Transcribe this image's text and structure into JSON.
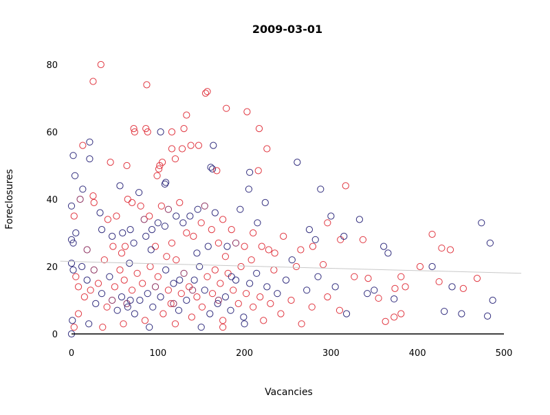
{
  "chart_data": {
    "type": "scatter",
    "title": "2009-03-01",
    "xlabel": "Vacancies",
    "ylabel": "Foreclosures",
    "xlim": [
      -13,
      520
    ],
    "ylim": [
      0,
      82
    ],
    "xticks": [
      "0",
      "100",
      "200",
      "300",
      "400",
      "500"
    ],
    "yticks": [
      "0",
      "20",
      "40",
      "60",
      "80"
    ],
    "grid": false,
    "colors": {
      "r": "#e0343e",
      "b": "#2e2a7c",
      "p": "#8a2c5c",
      "trend": "#c8c8c8",
      "axis": "#000000"
    },
    "trend": {
      "x": [
        -13,
        520
      ],
      "y": [
        21.6,
        18.0
      ]
    },
    "points": [
      [
        34,
        80,
        "r"
      ],
      [
        25,
        75,
        "r"
      ],
      [
        87,
        74,
        "r"
      ],
      [
        157,
        72,
        "r"
      ],
      [
        155,
        71.5,
        "r"
      ],
      [
        133,
        65,
        "r"
      ],
      [
        179,
        67,
        "r"
      ],
      [
        203,
        66,
        "r"
      ],
      [
        72,
        61,
        "r"
      ],
      [
        73,
        60,
        "r"
      ],
      [
        86,
        61,
        "r"
      ],
      [
        88,
        60,
        "r"
      ],
      [
        130,
        61,
        "r"
      ],
      [
        103,
        60,
        "b"
      ],
      [
        116,
        60,
        "r"
      ],
      [
        116,
        55,
        "r"
      ],
      [
        13,
        56,
        "r"
      ],
      [
        21,
        57,
        "b"
      ],
      [
        21,
        52,
        "b"
      ],
      [
        164,
        56,
        "b"
      ],
      [
        147,
        56,
        "r"
      ],
      [
        217,
        61,
        "r"
      ],
      [
        226,
        55,
        "r"
      ],
      [
        261,
        51,
        "b"
      ],
      [
        161,
        49.5,
        "b"
      ],
      [
        163,
        49,
        "b"
      ],
      [
        168,
        48.5,
        "r"
      ],
      [
        2,
        53,
        "b"
      ],
      [
        4,
        47,
        "b"
      ],
      [
        45,
        51,
        "r"
      ],
      [
        64,
        50,
        "r"
      ],
      [
        102,
        50,
        "r"
      ],
      [
        101,
        49,
        "r"
      ],
      [
        109,
        45,
        "b"
      ],
      [
        108,
        44.5,
        "b"
      ],
      [
        206,
        48,
        "b"
      ],
      [
        216,
        48.5,
        "r"
      ],
      [
        317,
        44,
        "r"
      ],
      [
        288,
        43,
        "b"
      ],
      [
        56,
        44,
        "b"
      ],
      [
        13,
        43,
        "b"
      ],
      [
        99,
        47,
        "r"
      ],
      [
        120,
        52,
        "r"
      ],
      [
        105,
        51,
        "r"
      ],
      [
        128,
        55,
        "r"
      ],
      [
        138,
        56,
        "r"
      ],
      [
        0,
        38,
        "b"
      ],
      [
        3,
        35,
        "r"
      ],
      [
        5,
        30,
        "b"
      ],
      [
        0,
        28,
        "b"
      ],
      [
        2,
        27,
        "b"
      ],
      [
        10,
        40,
        "p"
      ],
      [
        18,
        25,
        "p"
      ],
      [
        25,
        41,
        "r"
      ],
      [
        26,
        39,
        "r"
      ],
      [
        33,
        36,
        "b"
      ],
      [
        35,
        31,
        "b"
      ],
      [
        42,
        34,
        "r"
      ],
      [
        47,
        29,
        "b"
      ],
      [
        52,
        35,
        "r"
      ],
      [
        59,
        30,
        "b"
      ],
      [
        62,
        26,
        "r"
      ],
      [
        65,
        40,
        "r"
      ],
      [
        68,
        31,
        "b"
      ],
      [
        70,
        39,
        "r"
      ],
      [
        72,
        27,
        "b"
      ],
      [
        78,
        42,
        "b"
      ],
      [
        80,
        38,
        "r"
      ],
      [
        84,
        34,
        "p"
      ],
      [
        86,
        29,
        "b"
      ],
      [
        90,
        35,
        "r"
      ],
      [
        93,
        31,
        "b"
      ],
      [
        97,
        26,
        "r"
      ],
      [
        100,
        33,
        "b"
      ],
      [
        104,
        38,
        "r"
      ],
      [
        108,
        32,
        "b"
      ],
      [
        112,
        37,
        "p"
      ],
      [
        116,
        27,
        "r"
      ],
      [
        121,
        35,
        "b"
      ],
      [
        125,
        39,
        "r"
      ],
      [
        129,
        33,
        "b"
      ],
      [
        133,
        30,
        "r"
      ],
      [
        137,
        35,
        "b"
      ],
      [
        141,
        29,
        "r"
      ],
      [
        146,
        37,
        "b"
      ],
      [
        150,
        33,
        "r"
      ],
      [
        154,
        38,
        "p"
      ],
      [
        158,
        26,
        "b"
      ],
      [
        162,
        31,
        "r"
      ],
      [
        166,
        36,
        "b"
      ],
      [
        170,
        27,
        "r"
      ],
      [
        175,
        34,
        "r"
      ],
      [
        180,
        26,
        "b"
      ],
      [
        185,
        31,
        "r"
      ],
      [
        190,
        27,
        "p"
      ],
      [
        195,
        37,
        "b"
      ],
      [
        200,
        26,
        "r"
      ],
      [
        205,
        43,
        "b"
      ],
      [
        210,
        30,
        "r"
      ],
      [
        215,
        33,
        "b"
      ],
      [
        220,
        26,
        "r"
      ],
      [
        224,
        39,
        "b"
      ],
      [
        228,
        25,
        "r"
      ],
      [
        235,
        24,
        "r"
      ],
      [
        245,
        29,
        "r"
      ],
      [
        255,
        22,
        "b"
      ],
      [
        265,
        25,
        "r"
      ],
      [
        275,
        31,
        "b"
      ],
      [
        279,
        26,
        "r"
      ],
      [
        282,
        28,
        "b"
      ],
      [
        296,
        33,
        "r"
      ],
      [
        300,
        35,
        "b"
      ],
      [
        311,
        28,
        "r"
      ],
      [
        315,
        29,
        "b"
      ],
      [
        333,
        34,
        "b"
      ],
      [
        337,
        28,
        "r"
      ],
      [
        361,
        26,
        "b"
      ],
      [
        366,
        24,
        "b"
      ],
      [
        403,
        20,
        "r"
      ],
      [
        417,
        29.6,
        "r"
      ],
      [
        417,
        20,
        "b"
      ],
      [
        428,
        25.5,
        "r"
      ],
      [
        438,
        25,
        "r"
      ],
      [
        474,
        33,
        "b"
      ],
      [
        484,
        27,
        "b"
      ],
      [
        0,
        21,
        "b"
      ],
      [
        2,
        19,
        "b"
      ],
      [
        5,
        17,
        "r"
      ],
      [
        8,
        14,
        "r"
      ],
      [
        12,
        20,
        "b"
      ],
      [
        15,
        11,
        "r"
      ],
      [
        18,
        16,
        "b"
      ],
      [
        22,
        13,
        "r"
      ],
      [
        26,
        19,
        "p"
      ],
      [
        28,
        9,
        "b"
      ],
      [
        31,
        15,
        "r"
      ],
      [
        35,
        12,
        "b"
      ],
      [
        38,
        22,
        "r"
      ],
      [
        41,
        8,
        "r"
      ],
      [
        44,
        17,
        "b"
      ],
      [
        47,
        10,
        "p"
      ],
      [
        50,
        14,
        "r"
      ],
      [
        53,
        7,
        "b"
      ],
      [
        56,
        19,
        "r"
      ],
      [
        58,
        11,
        "b"
      ],
      [
        61,
        16,
        "r"
      ],
      [
        64,
        9,
        "p"
      ],
      [
        67,
        21,
        "b"
      ],
      [
        70,
        13,
        "r"
      ],
      [
        73,
        6,
        "b"
      ],
      [
        76,
        18,
        "r"
      ],
      [
        79,
        10,
        "b"
      ],
      [
        82,
        15,
        "r"
      ],
      [
        85,
        4,
        "r"
      ],
      [
        88,
        12,
        "b"
      ],
      [
        91,
        20,
        "r"
      ],
      [
        94,
        8,
        "b"
      ],
      [
        97,
        14,
        "p"
      ],
      [
        100,
        17,
        "r"
      ],
      [
        103,
        11,
        "b"
      ],
      [
        106,
        6,
        "r"
      ],
      [
        109,
        19,
        "b"
      ],
      [
        112,
        13,
        "r"
      ],
      [
        115,
        9,
        "r"
      ],
      [
        118,
        15,
        "b"
      ],
      [
        121,
        22,
        "r"
      ],
      [
        124,
        7,
        "b"
      ],
      [
        127,
        12,
        "r"
      ],
      [
        130,
        18,
        "p"
      ],
      [
        133,
        10,
        "b"
      ],
      [
        136,
        14,
        "r"
      ],
      [
        139,
        5,
        "r"
      ],
      [
        142,
        16,
        "b"
      ],
      [
        145,
        11,
        "r"
      ],
      [
        148,
        20,
        "b"
      ],
      [
        151,
        8,
        "r"
      ],
      [
        154,
        13,
        "b"
      ],
      [
        157,
        17,
        "r"
      ],
      [
        160,
        6,
        "b"
      ],
      [
        163,
        12,
        "r"
      ],
      [
        166,
        19,
        "r"
      ],
      [
        169,
        9,
        "b"
      ],
      [
        172,
        15,
        "r"
      ],
      [
        175,
        4,
        "r"
      ],
      [
        178,
        11,
        "b"
      ],
      [
        181,
        18,
        "r"
      ],
      [
        184,
        7,
        "b"
      ],
      [
        187,
        13,
        "r"
      ],
      [
        190,
        16,
        "b"
      ],
      [
        193,
        9,
        "r"
      ],
      [
        196,
        20,
        "r"
      ],
      [
        199,
        5,
        "b"
      ],
      [
        202,
        12,
        "r"
      ],
      [
        206,
        15,
        "b"
      ],
      [
        210,
        8,
        "r"
      ],
      [
        214,
        18,
        "b"
      ],
      [
        218,
        11,
        "r"
      ],
      [
        222,
        4,
        "r"
      ],
      [
        226,
        14,
        "b"
      ],
      [
        230,
        9,
        "r"
      ],
      [
        234,
        19,
        "r"
      ],
      [
        238,
        12,
        "b"
      ],
      [
        242,
        6,
        "r"
      ],
      [
        248,
        16,
        "b"
      ],
      [
        254,
        10,
        "r"
      ],
      [
        260,
        20,
        "r"
      ],
      [
        266,
        3,
        "r"
      ],
      [
        272,
        13,
        "b"
      ],
      [
        278,
        8,
        "r"
      ],
      [
        285,
        17,
        "b"
      ],
      [
        291,
        20.6,
        "r"
      ],
      [
        296,
        11,
        "r"
      ],
      [
        305,
        14,
        "b"
      ],
      [
        310,
        7,
        "r"
      ],
      [
        318,
        6,
        "b"
      ],
      [
        327,
        17,
        "r"
      ],
      [
        342,
        12,
        "b"
      ],
      [
        343,
        16.5,
        "r"
      ],
      [
        350,
        13,
        "b"
      ],
      [
        355,
        10.6,
        "r"
      ],
      [
        363,
        3.7,
        "r"
      ],
      [
        373,
        10.4,
        "b"
      ],
      [
        373,
        5,
        "r"
      ],
      [
        374,
        13.5,
        "r"
      ],
      [
        381,
        17,
        "r"
      ],
      [
        381,
        6,
        "r"
      ],
      [
        386,
        14,
        "r"
      ],
      [
        425,
        15.5,
        "r"
      ],
      [
        431,
        6.7,
        "b"
      ],
      [
        440,
        14,
        "b"
      ],
      [
        451,
        6,
        "b"
      ],
      [
        453,
        13.5,
        "r"
      ],
      [
        469,
        16.5,
        "r"
      ],
      [
        481,
        5.3,
        "b"
      ],
      [
        487,
        10,
        "b"
      ],
      [
        0,
        0,
        "b"
      ],
      [
        3,
        2,
        "r"
      ],
      [
        1,
        4,
        "b"
      ],
      [
        8,
        6,
        "r"
      ],
      [
        20,
        3,
        "b"
      ],
      [
        36,
        2,
        "r"
      ],
      [
        60,
        3,
        "r"
      ],
      [
        90,
        2,
        "b"
      ],
      [
        120,
        3,
        "r"
      ],
      [
        150,
        2,
        "b"
      ],
      [
        175,
        2,
        "r"
      ],
      [
        200,
        3,
        "b"
      ],
      [
        65,
        8,
        "b"
      ],
      [
        68,
        10,
        "b"
      ],
      [
        118,
        9,
        "p"
      ],
      [
        125,
        16,
        "b"
      ],
      [
        140,
        13,
        "p"
      ],
      [
        170,
        10,
        "p"
      ],
      [
        185,
        17,
        "b"
      ],
      [
        48,
        26,
        "r"
      ],
      [
        58,
        24,
        "r"
      ],
      [
        92,
        25,
        "b"
      ],
      [
        110,
        23,
        "r"
      ],
      [
        145,
        24,
        "b"
      ],
      [
        178,
        23,
        "r"
      ],
      [
        208,
        22,
        "r"
      ]
    ]
  }
}
